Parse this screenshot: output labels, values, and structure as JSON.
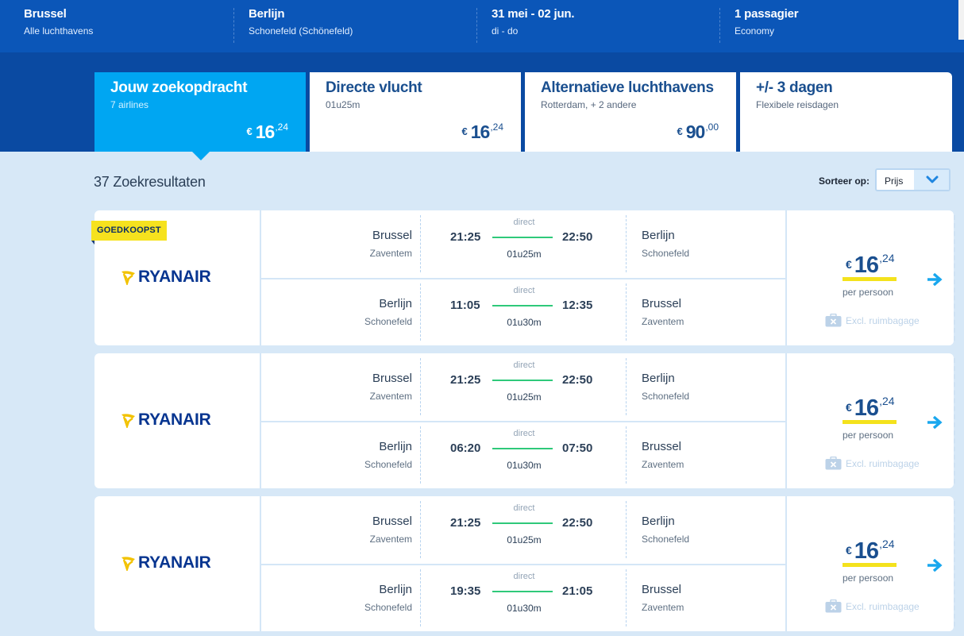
{
  "summary": {
    "from": {
      "title": "Brussel",
      "sub": "Alle luchthavens"
    },
    "to": {
      "title": "Berlijn",
      "sub": "Schonefeld (Schönefeld)"
    },
    "dates": {
      "title": "31 mei - 02 jun.",
      "sub": "di - do"
    },
    "passengers": {
      "title": "1 passagier",
      "sub": "Economy"
    }
  },
  "tabs": [
    {
      "title": "Jouw zoekopdracht",
      "sub": "7 airlines",
      "currency": "€",
      "price_int": "16",
      "price_dec": ",24",
      "active": true
    },
    {
      "title": "Directe vlucht",
      "sub": "01u25m",
      "currency": "€",
      "price_int": "16",
      "price_dec": ",24",
      "active": false
    },
    {
      "title": "Alternatieve luchthavens",
      "sub": "Rotterdam, + 2 andere",
      "currency": "€",
      "price_int": "90",
      "price_dec": ",00",
      "active": false
    },
    {
      "title": "+/- 3 dagen",
      "sub": "Flexibele reisdagen",
      "active": false
    }
  ],
  "results": {
    "count_text": "37 Zoekresultaten",
    "sort_label": "Sorteer op:",
    "sort_value": "Prijs"
  },
  "colors": {
    "accent": "#00a6f2",
    "header": "#0b56b8",
    "band": "#0a4aa2",
    "highlight": "#f6e21e",
    "line": "#2fc97a"
  },
  "cards": [
    {
      "badge": "GOEDKOOPST",
      "airline": "RYANAIR",
      "outbound": {
        "from_city": "Brussel",
        "from_airport": "Zaventem",
        "dep": "21:25",
        "type": "direct",
        "duration": "01u25m",
        "arr": "22:50",
        "to_city": "Berlijn",
        "to_airport": "Schonefeld"
      },
      "inbound": {
        "from_city": "Berlijn",
        "from_airport": "Schonefeld",
        "dep": "11:05",
        "type": "direct",
        "duration": "01u30m",
        "arr": "12:35",
        "to_city": "Brussel",
        "to_airport": "Zaventem"
      },
      "currency": "€",
      "price_int": "16",
      "price_dec": ",24",
      "per": "per persoon",
      "bag": "Excl. ruimbagage"
    },
    {
      "badge": "",
      "airline": "RYANAIR",
      "outbound": {
        "from_city": "Brussel",
        "from_airport": "Zaventem",
        "dep": "21:25",
        "type": "direct",
        "duration": "01u25m",
        "arr": "22:50",
        "to_city": "Berlijn",
        "to_airport": "Schonefeld"
      },
      "inbound": {
        "from_city": "Berlijn",
        "from_airport": "Schonefeld",
        "dep": "06:20",
        "type": "direct",
        "duration": "01u30m",
        "arr": "07:50",
        "to_city": "Brussel",
        "to_airport": "Zaventem"
      },
      "currency": "€",
      "price_int": "16",
      "price_dec": ",24",
      "per": "per persoon",
      "bag": "Excl. ruimbagage"
    },
    {
      "badge": "",
      "airline": "RYANAIR",
      "outbound": {
        "from_city": "Brussel",
        "from_airport": "Zaventem",
        "dep": "21:25",
        "type": "direct",
        "duration": "01u25m",
        "arr": "22:50",
        "to_city": "Berlijn",
        "to_airport": "Schonefeld"
      },
      "inbound": {
        "from_city": "Berlijn",
        "from_airport": "Schonefeld",
        "dep": "19:35",
        "type": "direct",
        "duration": "01u30m",
        "arr": "21:05",
        "to_city": "Brussel",
        "to_airport": "Zaventem"
      },
      "currency": "€",
      "price_int": "16",
      "price_dec": ",24",
      "per": "per persoon",
      "bag": "Excl. ruimbagage"
    }
  ]
}
